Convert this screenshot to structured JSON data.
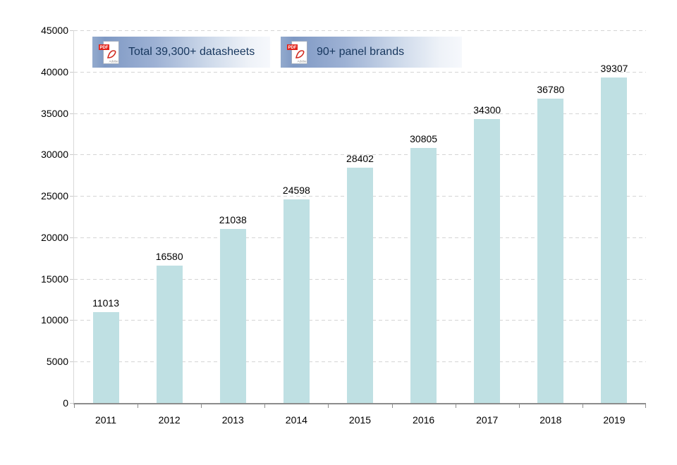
{
  "badges": [
    {
      "icon": "pdf-icon",
      "label": "Total 39,300+ datasheets"
    },
    {
      "icon": "pdf-icon",
      "label": "90+ panel brands"
    }
  ],
  "pdf_icon": {
    "banner_text": "PDF",
    "footer_text": "Adobe"
  },
  "colors": {
    "bar_fill": "#bfe0e3",
    "gridline": "#d4d4d4",
    "x_axis": "#8c8c8c",
    "y_axis": "#d9d9d9",
    "tick_label_text": "#000000",
    "badge_text": "#17375e",
    "badge_gradient_left": "#7f99c4",
    "badge_gradient_right": "#f6f8fc",
    "pdf_red": "#e2231a"
  },
  "chart_data": {
    "type": "bar",
    "title": "",
    "xlabel": "",
    "ylabel": "",
    "categories": [
      "2011",
      "2012",
      "2013",
      "2014",
      "2015",
      "2016",
      "2017",
      "2018",
      "2019"
    ],
    "values": [
      11013,
      16580,
      21038,
      24598,
      28402,
      30805,
      34300,
      36780,
      39307
    ],
    "ylim": [
      0,
      45000
    ],
    "yticks": [
      0,
      5000,
      10000,
      15000,
      20000,
      25000,
      30000,
      35000,
      40000,
      45000
    ],
    "grid": "horizontal dashed",
    "legend_position": "none",
    "bar_labels": true
  }
}
